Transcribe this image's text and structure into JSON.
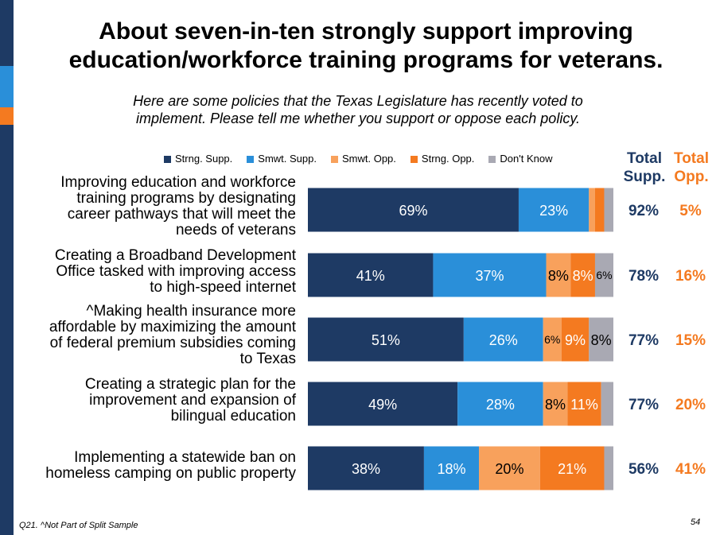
{
  "title_line1": "About seven-in-ten strongly support improving",
  "title_line2": "education/workforce training programs for veterans.",
  "subtitle_line1": "Here are some policies that the Texas Legislature has recently voted to",
  "subtitle_line2": "implement. Please tell me whether you support or oppose each policy.",
  "totals_header": {
    "supp_line1": "Total",
    "supp_line2": "Supp.",
    "opp_line1": "Total",
    "opp_line2": "Opp."
  },
  "footnote": "Q21. ^Not Part of Split Sample",
  "page_number": "54",
  "colors": {
    "strng_supp": "#1e3a64",
    "smwt_supp": "#2a8fd9",
    "smwt_opp": "#f8a15c",
    "strng_opp": "#f47a20",
    "dont_know": "#a9a9b3",
    "total_supp_text": "#1e3a64",
    "total_opp_text": "#f47a20"
  },
  "chart_data": {
    "type": "bar",
    "orientation": "horizontal",
    "stacked": true,
    "xlim": [
      0,
      100
    ],
    "grid": false,
    "legend_placement": "top",
    "series": [
      {
        "name": "Strng. Supp.",
        "color_key": "strng_supp"
      },
      {
        "name": "Smwt. Supp.",
        "color_key": "smwt_supp"
      },
      {
        "name": "Smwt. Opp.",
        "color_key": "smwt_opp"
      },
      {
        "name": "Strng. Opp.",
        "color_key": "strng_opp"
      },
      {
        "name": "Don't Know",
        "color_key": "dont_know"
      }
    ],
    "rows": [
      {
        "label_lines": [
          "Improving education and workforce",
          "training programs by designating",
          "career pathways that will meet the",
          "needs of veterans"
        ],
        "values": [
          69,
          23,
          2,
          3,
          3
        ],
        "labels": [
          "69%",
          "23%",
          "",
          "",
          ""
        ],
        "total_supp": "92%",
        "total_opp": "5%"
      },
      {
        "label_lines": [
          "Creating a Broadband Development",
          "Office tasked with improving access",
          "to high-speed internet"
        ],
        "values": [
          41,
          37,
          8,
          8,
          6
        ],
        "labels": [
          "41%",
          "37%",
          "8%",
          "8%",
          "6%"
        ],
        "total_supp": "78%",
        "total_opp": "16%"
      },
      {
        "label_lines": [
          "^Making health insurance more",
          "affordable by maximizing the amount",
          "of federal premium subsidies coming",
          "to Texas"
        ],
        "values": [
          51,
          26,
          6,
          9,
          8
        ],
        "labels": [
          "51%",
          "26%",
          "6%",
          "9%",
          "8%"
        ],
        "total_supp": "77%",
        "total_opp": "15%"
      },
      {
        "label_lines": [
          "Creating a strategic plan for the",
          "improvement and expansion of",
          "bilingual education"
        ],
        "values": [
          49,
          28,
          8,
          11,
          4
        ],
        "labels": [
          "49%",
          "28%",
          "8%",
          "11%",
          ""
        ],
        "total_supp": "77%",
        "total_opp": "20%"
      },
      {
        "label_lines": [
          "Implementing a statewide ban on",
          "homeless camping on public property"
        ],
        "values": [
          38,
          18,
          20,
          21,
          3
        ],
        "labels": [
          "38%",
          "18%",
          "20%",
          "21%",
          ""
        ],
        "total_supp": "56%",
        "total_opp": "41%"
      }
    ]
  }
}
